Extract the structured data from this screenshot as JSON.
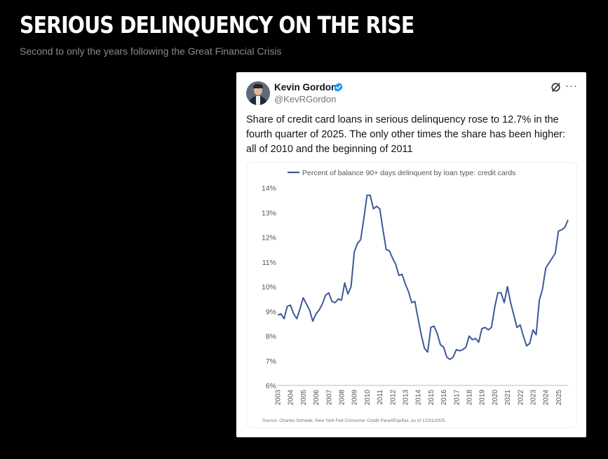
{
  "page": {
    "headline": "SERIOUS DELINQUENCY ON THE RISE",
    "subheadline": "Second to only the years following the Great Financial Crisis"
  },
  "tweet": {
    "author_name": "Kevin Gordon",
    "handle": "@KevRGordon",
    "text": "Share of credit card loans in serious delinquency rose to 12.7% in the fourth quarter of 2025. The only other times the share has been higher: all of 2010 and the beginning of 2011",
    "icons": [
      "verified-badge-icon",
      "grok-icon",
      "more-options-icon"
    ]
  },
  "chart_data": {
    "type": "line",
    "series": [
      {
        "name": "Percent of balance 90+ days delinquent by loan type: credit cards",
        "color": "#3d5a99",
        "x": [
          "2003Q1",
          "2003Q2",
          "2003Q3",
          "2003Q4",
          "2004Q1",
          "2004Q2",
          "2004Q3",
          "2004Q4",
          "2005Q1",
          "2005Q2",
          "2005Q3",
          "2005Q4",
          "2006Q1",
          "2006Q2",
          "2006Q3",
          "2006Q4",
          "2007Q1",
          "2007Q2",
          "2007Q3",
          "2007Q4",
          "2008Q1",
          "2008Q2",
          "2008Q3",
          "2008Q4",
          "2009Q1",
          "2009Q2",
          "2009Q3",
          "2009Q4",
          "2010Q1",
          "2010Q2",
          "2010Q3",
          "2010Q4",
          "2011Q1",
          "2011Q2",
          "2011Q3",
          "2011Q4",
          "2012Q1",
          "2012Q2",
          "2012Q3",
          "2012Q4",
          "2013Q1",
          "2013Q2",
          "2013Q3",
          "2013Q4",
          "2014Q1",
          "2014Q2",
          "2014Q3",
          "2014Q4",
          "2015Q1",
          "2015Q2",
          "2015Q3",
          "2015Q4",
          "2016Q1",
          "2016Q2",
          "2016Q3",
          "2016Q4",
          "2017Q1",
          "2017Q2",
          "2017Q3",
          "2017Q4",
          "2018Q1",
          "2018Q2",
          "2018Q3",
          "2018Q4",
          "2019Q1",
          "2019Q2",
          "2019Q3",
          "2019Q4",
          "2020Q1",
          "2020Q2",
          "2020Q3",
          "2020Q4",
          "2021Q1",
          "2021Q2",
          "2021Q3",
          "2021Q4",
          "2022Q1",
          "2022Q2",
          "2022Q3",
          "2022Q4",
          "2023Q1",
          "2023Q2",
          "2023Q3",
          "2023Q4",
          "2024Q1",
          "2024Q2",
          "2024Q3",
          "2024Q4",
          "2025Q1",
          "2025Q2",
          "2025Q3",
          "2025Q4"
        ],
        "values": [
          8.85,
          8.9,
          8.7,
          9.2,
          9.25,
          8.9,
          8.7,
          9.1,
          9.55,
          9.3,
          9.05,
          8.6,
          8.9,
          9.05,
          9.3,
          9.65,
          9.75,
          9.4,
          9.35,
          9.5,
          9.45,
          10.15,
          9.7,
          10.0,
          11.4,
          11.75,
          11.9,
          12.75,
          13.7,
          13.7,
          13.15,
          13.25,
          13.15,
          12.3,
          11.5,
          11.45,
          11.15,
          10.9,
          10.45,
          10.5,
          10.1,
          9.8,
          9.35,
          9.4,
          8.7,
          8.05,
          7.5,
          7.35,
          8.35,
          8.4,
          8.1,
          7.65,
          7.55,
          7.15,
          7.05,
          7.15,
          7.45,
          7.4,
          7.45,
          7.55,
          8.0,
          7.85,
          7.9,
          7.75,
          8.3,
          8.35,
          8.25,
          8.35,
          9.15,
          9.75,
          9.75,
          9.35,
          10.0,
          9.35,
          8.85,
          8.35,
          8.45,
          8.0,
          7.6,
          7.7,
          8.25,
          8.05,
          9.45,
          9.9,
          10.75,
          10.95,
          11.15,
          11.35,
          12.25,
          12.3,
          12.4,
          12.7
        ]
      }
    ],
    "x_tick_labels": [
      "2003",
      "2004",
      "2005",
      "2006",
      "2007",
      "2008",
      "2009",
      "2010",
      "2011",
      "2012",
      "2013",
      "2014",
      "2015",
      "2016",
      "2017",
      "2018",
      "2019",
      "2020",
      "2021",
      "2022",
      "2023",
      "2024",
      "2025"
    ],
    "y_tick_labels": [
      "14%",
      "13%",
      "12%",
      "11%",
      "10%",
      "9%",
      "8%",
      "7%",
      "6%"
    ],
    "ylim": [
      6,
      14
    ],
    "grid": false,
    "legend": "top",
    "source": "Source: Charles Schwab, New York Fed Consumer Credit Panel/Equifax, as of 12/31/2025."
  }
}
